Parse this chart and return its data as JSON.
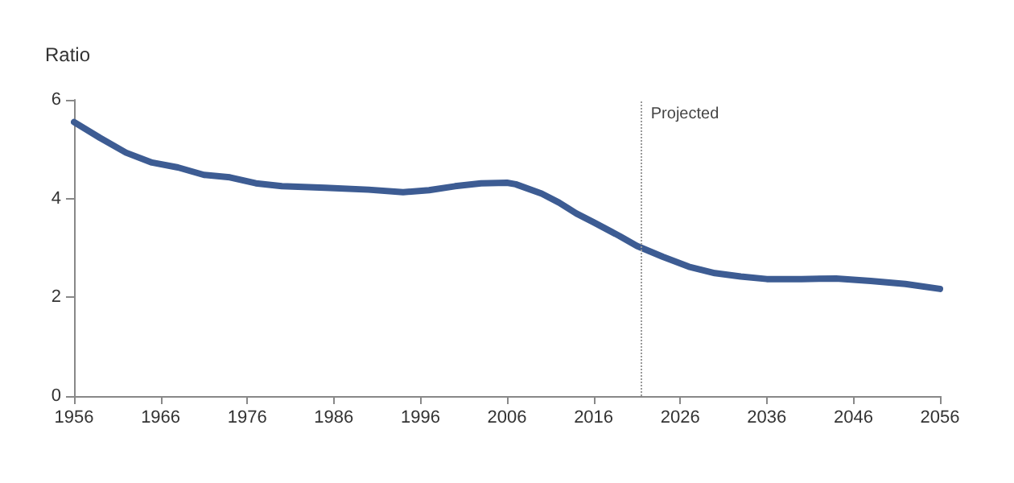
{
  "chart_data": {
    "type": "line",
    "ylabel": "Ratio",
    "x": [
      1956,
      1959,
      1962,
      1965,
      1968,
      1971,
      1974,
      1977,
      1980,
      1985,
      1990,
      1994,
      1997,
      2000,
      2003,
      2006,
      2007,
      2010,
      2012,
      2014,
      2016,
      2019,
      2021,
      2024,
      2027,
      2030,
      2033,
      2036,
      2040,
      2044,
      2048,
      2052,
      2056
    ],
    "series": [
      {
        "color": "#3d5c93",
        "values": [
          5.55,
          5.23,
          4.93,
          4.73,
          4.63,
          4.48,
          4.43,
          4.31,
          4.25,
          4.22,
          4.18,
          4.13,
          4.17,
          4.25,
          4.31,
          4.32,
          4.29,
          4.1,
          3.92,
          3.7,
          3.52,
          3.24,
          3.04,
          2.82,
          2.62,
          2.49,
          2.42,
          2.37,
          2.37,
          2.38,
          2.33,
          2.27,
          2.17
        ]
      }
    ],
    "xlim": [
      1956,
      2056
    ],
    "xticks": [
      1956,
      1966,
      1976,
      1986,
      1996,
      2006,
      2016,
      2026,
      2036,
      2046,
      2056
    ],
    "ylim": [
      0,
      6
    ],
    "yticks": [
      0,
      2,
      4,
      6
    ],
    "ref_lines": [
      {
        "axis": "x",
        "value": 2021.5,
        "label": "Projected",
        "color": "#999999",
        "line_style": "dotted"
      }
    ],
    "grid": false,
    "marker": "none",
    "line_style": "solid"
  }
}
